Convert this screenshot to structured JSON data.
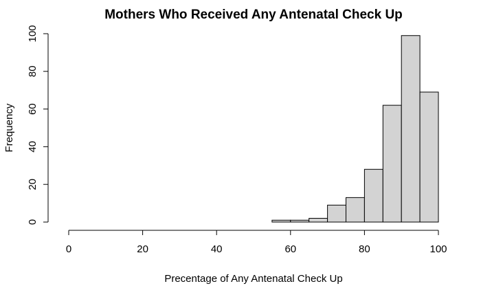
{
  "chart_data": {
    "type": "bar",
    "subtype": "histogram",
    "title": "Mothers Who Received Any Antenatal Check Up",
    "xlabel": "Precentage of Any Antenatal Check Up",
    "ylabel": "Frequency",
    "xlim": [
      0,
      100
    ],
    "ylim": [
      0,
      100
    ],
    "x_ticks": [
      "0",
      "20",
      "40",
      "60",
      "80",
      "100"
    ],
    "y_ticks": [
      "0",
      "20",
      "40",
      "60",
      "80",
      "100"
    ],
    "bins": [
      {
        "from": 55,
        "to": 60,
        "count": 1
      },
      {
        "from": 60,
        "to": 65,
        "count": 1
      },
      {
        "from": 65,
        "to": 70,
        "count": 2
      },
      {
        "from": 70,
        "to": 75,
        "count": 9
      },
      {
        "from": 75,
        "to": 80,
        "count": 13
      },
      {
        "from": 80,
        "to": 85,
        "count": 28
      },
      {
        "from": 85,
        "to": 90,
        "count": 62
      },
      {
        "from": 90,
        "to": 95,
        "count": 99
      },
      {
        "from": 95,
        "to": 100,
        "count": 69
      }
    ],
    "bar_fill": "#d3d3d3",
    "bar_stroke": "#000000",
    "grid": false,
    "legend": false
  }
}
